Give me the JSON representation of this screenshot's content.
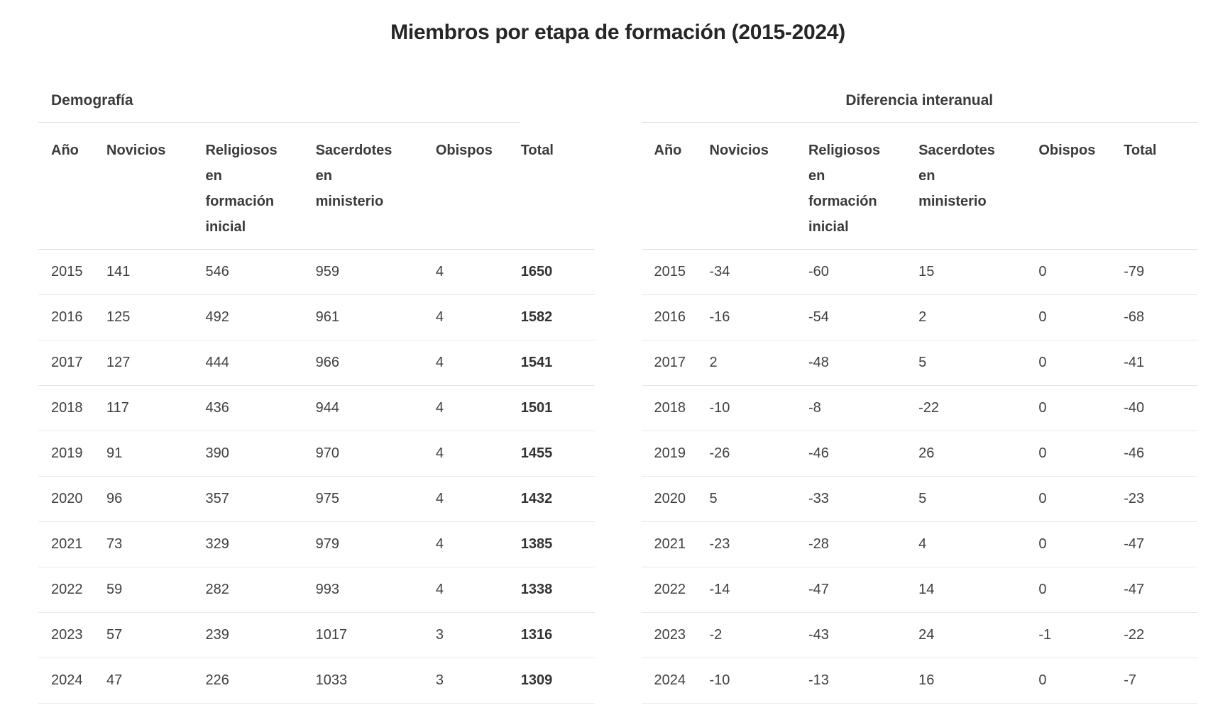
{
  "page_title": "Miembros por etapa de formación (2015-2024)",
  "columns": [
    "Año",
    "Novicios",
    "Religiosos en formación inicial",
    "Sacerdotes en ministerio",
    "Obispos",
    "Total"
  ],
  "tables": {
    "demografia": {
      "section_title": "Demografía",
      "rows": [
        [
          2015,
          141,
          546,
          959,
          4,
          1650
        ],
        [
          2016,
          125,
          492,
          961,
          4,
          1582
        ],
        [
          2017,
          127,
          444,
          966,
          4,
          1541
        ],
        [
          2018,
          117,
          436,
          944,
          4,
          1501
        ],
        [
          2019,
          91,
          390,
          970,
          4,
          1455
        ],
        [
          2020,
          96,
          357,
          975,
          4,
          1432
        ],
        [
          2021,
          73,
          329,
          979,
          4,
          1385
        ],
        [
          2022,
          59,
          282,
          993,
          4,
          1338
        ],
        [
          2023,
          57,
          239,
          1017,
          3,
          1316
        ],
        [
          2024,
          47,
          226,
          1033,
          3,
          1309
        ]
      ]
    },
    "diferencia": {
      "section_title": "Diferencia interanual",
      "rows": [
        [
          2015,
          -34,
          -60,
          15,
          0,
          -79
        ],
        [
          2016,
          -16,
          -54,
          2,
          0,
          -68
        ],
        [
          2017,
          2,
          -48,
          5,
          0,
          -41
        ],
        [
          2018,
          -10,
          -8,
          -22,
          0,
          -40
        ],
        [
          2019,
          -26,
          -46,
          26,
          0,
          -46
        ],
        [
          2020,
          5,
          -33,
          5,
          0,
          -23
        ],
        [
          2021,
          -23,
          -28,
          4,
          0,
          -47
        ],
        [
          2022,
          -14,
          -47,
          14,
          0,
          -47
        ],
        [
          2023,
          -2,
          -43,
          24,
          -1,
          -22
        ],
        [
          2024,
          -10,
          -13,
          16,
          0,
          -7
        ]
      ]
    }
  },
  "colors": {
    "title_text": "#262626",
    "header_text": "#3b3b3b",
    "body_text": "#404040",
    "header_divider": "#dedede",
    "row_divider": "#e8e8e8"
  }
}
